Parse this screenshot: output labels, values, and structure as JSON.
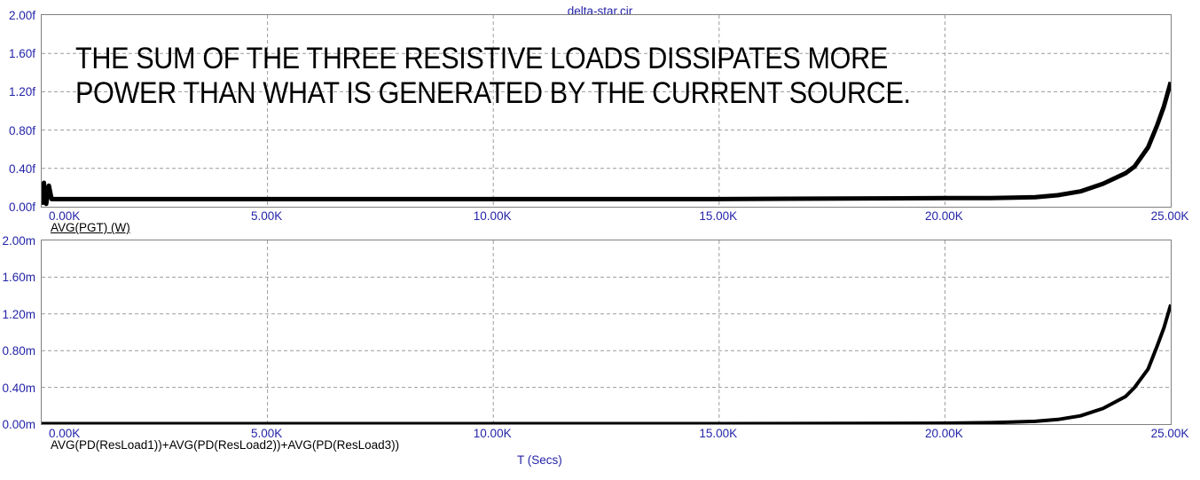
{
  "window": {
    "title": "delta-star.cir"
  },
  "annotation": {
    "line1": "THE SUM OF THE THREE RESISTIVE LOADS DISSIPATES MORE",
    "line2": "POWER THAN WHAT IS GENERATED BY THE CURRENT SOURCE."
  },
  "x_axis_title": "T (Secs)",
  "colors": {
    "label_blue": "#2424a8",
    "curve_black": "#000000",
    "grid_gray": "#9c9c9c",
    "border_gray": "#808080",
    "background": "#ffffff"
  },
  "chart_data": [
    {
      "type": "line",
      "title": "delta-star.cir",
      "ylabel": "AVG(PGT) (W)",
      "ylabel_underlined": true,
      "xlabel": "T (Secs)",
      "y_unit": "femtowatts",
      "x_unit": "kiloseconds",
      "ylim": [
        0,
        2.0
      ],
      "xlim": [
        0,
        25
      ],
      "grid": true,
      "legend_position": "below-axis",
      "y_ticks": [
        "2.00f",
        "1.60f",
        "1.20f",
        "0.80f",
        "0.40f",
        "0.00f"
      ],
      "x_ticks": [
        "0.00K",
        "5.00K",
        "10.00K",
        "15.00K",
        "20.00K",
        "25.00K"
      ],
      "series": [
        {
          "name": "AVG(PGT)",
          "x": [
            0,
            0.05,
            0.1,
            0.16,
            0.22,
            1,
            5,
            10,
            15,
            20,
            21,
            22,
            22.5,
            23,
            23.5,
            24,
            24.2,
            24.5,
            24.7,
            24.85,
            25
          ],
          "y": [
            0.02,
            0.25,
            0.03,
            0.22,
            0.08,
            0.08,
            0.08,
            0.08,
            0.08,
            0.09,
            0.09,
            0.1,
            0.12,
            0.16,
            0.24,
            0.35,
            0.42,
            0.62,
            0.85,
            1.05,
            1.3
          ]
        }
      ]
    },
    {
      "type": "line",
      "title": "delta-star.cir",
      "ylabel": "AVG(PD(ResLoad1))+AVG(PD(ResLoad2))+AVG(PD(ResLoad3))",
      "ylabel_underlined": false,
      "xlabel": "T (Secs)",
      "y_unit": "milliwatts",
      "x_unit": "kiloseconds",
      "ylim": [
        0,
        2.0
      ],
      "xlim": [
        0,
        25
      ],
      "grid": true,
      "legend_position": "below-axis",
      "y_ticks": [
        "2.00m",
        "1.60m",
        "1.20m",
        "0.80m",
        "0.40m",
        "0.00m"
      ],
      "x_ticks": [
        "0.00K",
        "5.00K",
        "10.00K",
        "15.00K",
        "20.00K",
        "25.00K"
      ],
      "series": [
        {
          "name": "AVG(PD(ResLoad1))+AVG(PD(ResLoad2))+AVG(PD(ResLoad3))",
          "x": [
            0,
            5,
            10,
            15,
            20,
            21,
            22,
            22.5,
            23,
            23.5,
            24,
            24.2,
            24.5,
            24.7,
            24.85,
            25
          ],
          "y": [
            0.005,
            0.005,
            0.005,
            0.005,
            0.01,
            0.015,
            0.03,
            0.05,
            0.09,
            0.17,
            0.3,
            0.4,
            0.6,
            0.85,
            1.05,
            1.3
          ]
        }
      ]
    }
  ]
}
